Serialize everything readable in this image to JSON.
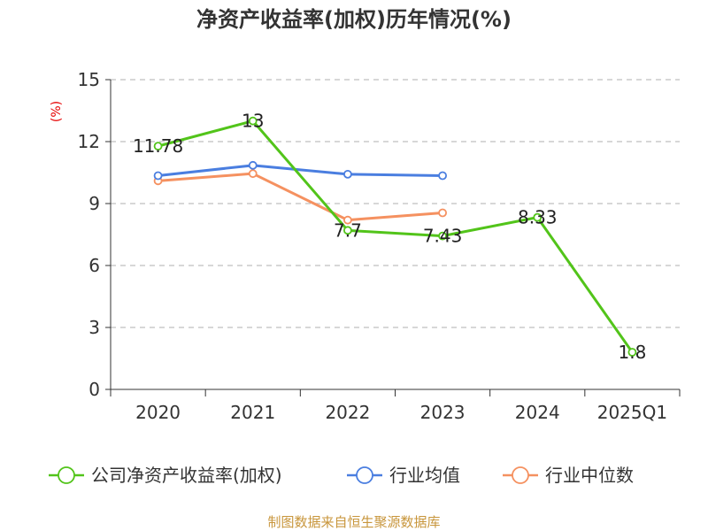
{
  "chart_data": {
    "type": "line",
    "title": "净资产收益率(加权)历年情况(%)",
    "ylabel": "(%)",
    "xlabel": "",
    "categories": [
      "2020",
      "2021",
      "2022",
      "2023",
      "2024",
      "2025Q1"
    ],
    "ylim": [
      0,
      15
    ],
    "yticks": [
      0,
      3,
      6,
      9,
      12,
      15
    ],
    "grid": true,
    "legend_position": "bottom",
    "series": [
      {
        "name": "公司净资产收益率(加权)",
        "color": "#52c41a",
        "values": [
          11.78,
          13,
          7.7,
          7.43,
          8.33,
          1.8
        ],
        "labels": [
          "11.78",
          "13",
          "7.7",
          "7.43",
          "8.33",
          "1.8"
        ]
      },
      {
        "name": "行业均值",
        "color": "#4a7ee0",
        "values": [
          10.35,
          10.85,
          10.42,
          10.35,
          null,
          null
        ]
      },
      {
        "name": "行业中位数",
        "color": "#f59160",
        "values": [
          10.1,
          10.45,
          8.2,
          8.55,
          null,
          null
        ]
      }
    ]
  },
  "source": "制图数据来自恒生聚源数据库"
}
